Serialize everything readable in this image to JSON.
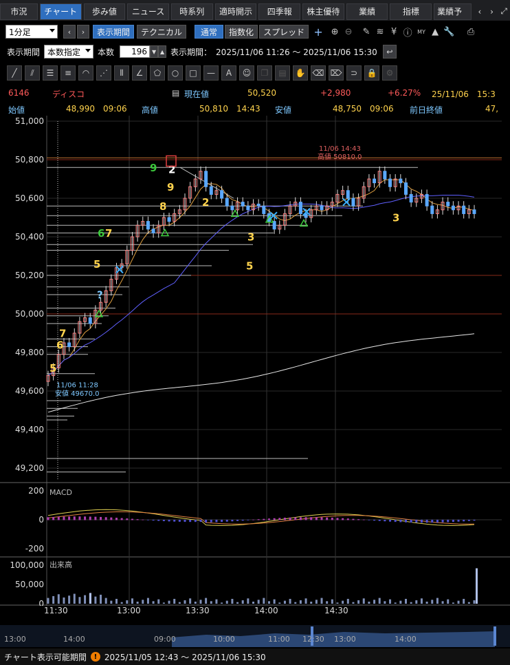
{
  "tabs": [
    "市況",
    "チャート",
    "歩み値",
    "ニュース",
    "時系列",
    "適時開示",
    "四季報",
    "株主優待",
    "業績",
    "指標",
    "業績予"
  ],
  "active_tab": 1,
  "toolbar": {
    "interval": "1分足",
    "period_button": "表示期間",
    "technical_button": "テクニカル",
    "normal_button": "通常",
    "index_button": "指数化",
    "spread_button": "スプレッド",
    "yen_icon": "¥",
    "my_icon": "MY"
  },
  "period_row": {
    "label": "表示期間",
    "mode": "本数指定",
    "count_label": "本数",
    "count": "196",
    "range_label": "表示期間：",
    "range": "2025/11/06 11:26 ～ 2025/11/06 15:30"
  },
  "quote": {
    "code": "6146",
    "name": "ディスコ",
    "current_label": "現在値",
    "current": "50,520",
    "change": "+2,980",
    "change_pct": "+6.27%",
    "datetime": "25/11/06　15:3",
    "open_label": "始値",
    "open": "48,990",
    "open_time": "09:06",
    "high_label": "高値",
    "high": "50,810",
    "high_time": "14:43",
    "low_label": "安値",
    "low": "48,750",
    "low_time": "09:06",
    "prev_label": "前日終値",
    "prev": "47,"
  },
  "colors": {
    "up": "#ff5a5a",
    "down": "#4da6ff",
    "accent": "#2f6fbf",
    "label_blue": "#7ec8ff",
    "yellow": "#ffd34d",
    "green": "#3cc83c"
  },
  "chart_data": {
    "type": "candlestick",
    "price_axis": [
      "51,000",
      "50,800",
      "50,600",
      "50,400",
      "50,200",
      "50,000",
      "49,800",
      "49,600",
      "49,400",
      "49,200"
    ],
    "ylim": [
      49100,
      51000
    ],
    "x_ticks": [
      "11:30",
      "13:00",
      "13:30",
      "14:00",
      "14:30"
    ],
    "close_series": [
      49680,
      49720,
      49790,
      49850,
      49830,
      49900,
      49960,
      49980,
      49950,
      50020,
      50060,
      50120,
      50180,
      50240,
      50260,
      50330,
      50400,
      50460,
      50480,
      50440,
      50420,
      50460,
      50500,
      50480,
      50520,
      50540,
      50600,
      50660,
      50700,
      50740,
      50660,
      50620,
      50640,
      50600,
      50560,
      50540,
      50580,
      50560,
      50540,
      50570,
      50560,
      50520,
      50480,
      50440,
      50460,
      50520,
      50560,
      50580,
      50520,
      50500,
      50540,
      50560,
      50540,
      50560,
      50580,
      50620,
      50640,
      50600,
      50560,
      50600,
      50660,
      50700,
      50680,
      50740,
      50700,
      50660,
      50700,
      50680,
      50620,
      50580,
      50600,
      50620,
      50560,
      50520,
      50540,
      50580,
      50560,
      50540,
      50560,
      50520,
      50540,
      50520
    ],
    "annotations": {
      "high_note_time": "11/06 14:43",
      "high_note_value": "高値 50810.0",
      "low_note_time": "11/06 11:28",
      "low_note_value": "安値 49670.0"
    },
    "count_labels": [
      "5",
      "6",
      "7",
      "5",
      "6",
      "7",
      "8",
      "9",
      "9",
      "2",
      "2",
      "3",
      "5",
      "3",
      "?"
    ],
    "macd_label": "MACD",
    "macd_axis": [
      "200",
      "0",
      "-200"
    ],
    "volume_label": "出来高",
    "volume_axis": [
      "100,000",
      "50,000",
      "0"
    ]
  },
  "navigator": {
    "ticks": [
      "13:00",
      "14:00",
      "09:00",
      "10:00",
      "11:00",
      "12:30",
      "13:00",
      "14:00"
    ]
  },
  "footer": {
    "label": "チャート表示可能期間",
    "warn": "!",
    "range": "2025/11/05 12:43 ～ 2025/11/06 15:30"
  }
}
